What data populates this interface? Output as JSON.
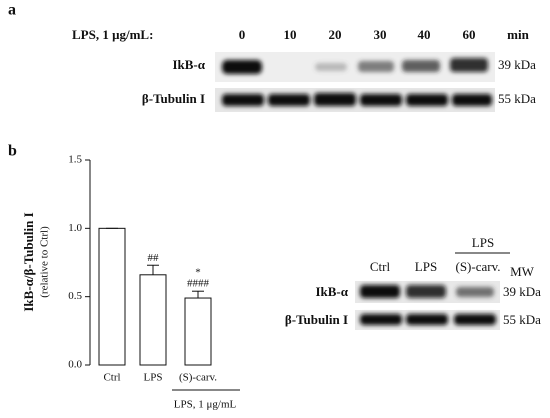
{
  "panel_a": {
    "label": "a",
    "treatment": "LPS, 1 μg/mL:",
    "times": [
      "0",
      "10",
      "20",
      "30",
      "40",
      "60"
    ],
    "time_unit": "min",
    "blots": [
      {
        "name": "IkB-α",
        "mw": "39 kDa"
      },
      {
        "name": "β-Tubulin I",
        "mw": "55 kDa"
      }
    ]
  },
  "panel_b_blot": {
    "lanes": [
      "Ctrl",
      "LPS",
      "(S)-carv."
    ],
    "group_label": "LPS",
    "mw_header": "MW",
    "blots": [
      {
        "name": "IkB-α",
        "mw": "39 kDa"
      },
      {
        "name": "β-Tubulin I",
        "mw": "55 kDa"
      }
    ]
  },
  "chart_data": {
    "type": "bar",
    "panel_label": "b",
    "y_label": "IkB-α/β-Tubulin I",
    "y_sublabel": "(relative to Ctrl)",
    "categories": [
      "Ctrl",
      "LPS",
      "(S)-carv."
    ],
    "values": [
      1.0,
      0.66,
      0.49
    ],
    "errors": [
      0,
      0.07,
      0.05
    ],
    "value_annotations": [
      null,
      [
        "##"
      ],
      [
        "*",
        "####"
      ]
    ],
    "group_label": "LPS, 1 μg/mL",
    "color": "#ffffff",
    "ylim": [
      0,
      1.5
    ],
    "yticks": [
      {
        "value": 0,
        "label": "0.0"
      },
      0.5,
      {
        "value": 1,
        "label": "1.0"
      },
      1.5
    ]
  }
}
